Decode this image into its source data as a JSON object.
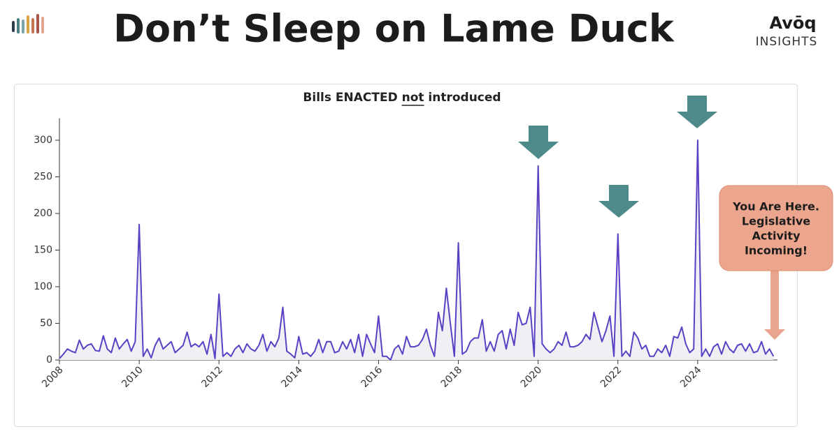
{
  "header": {
    "title": "Don’t Sleep on Lame Duck",
    "brand": "Avōq",
    "brand_sub": "INSIGHTS"
  },
  "chart_data": {
    "type": "area",
    "title": "Bills ENACTED not introduced",
    "color": "#5b3fc4",
    "fill": "#eef0f4",
    "x": [
      2008,
      2008.1,
      2008.2,
      2008.3,
      2008.4,
      2008.5,
      2008.6,
      2008.7,
      2008.8,
      2008.9,
      2009,
      2009.1,
      2009.2,
      2009.3,
      2009.4,
      2009.5,
      2009.6,
      2009.7,
      2009.8,
      2009.9,
      2010,
      2010.1,
      2010.2,
      2010.3,
      2010.4,
      2010.5,
      2010.6,
      2010.7,
      2010.8,
      2010.9,
      2011,
      2011.1,
      2011.2,
      2011.3,
      2011.4,
      2011.5,
      2011.6,
      2011.7,
      2011.8,
      2011.9,
      2012,
      2012.1,
      2012.2,
      2012.3,
      2012.4,
      2012.5,
      2012.6,
      2012.7,
      2012.8,
      2012.9,
      2013,
      2013.1,
      2013.2,
      2013.3,
      2013.4,
      2013.5,
      2013.6,
      2013.7,
      2013.8,
      2013.9,
      2014,
      2014.1,
      2014.2,
      2014.3,
      2014.4,
      2014.5,
      2014.6,
      2014.7,
      2014.8,
      2014.9,
      2015,
      2015.1,
      2015.2,
      2015.3,
      2015.4,
      2015.5,
      2015.6,
      2015.7,
      2015.8,
      2015.9,
      2016,
      2016.1,
      2016.2,
      2016.3,
      2016.4,
      2016.5,
      2016.6,
      2016.7,
      2016.8,
      2016.9,
      2017,
      2017.1,
      2017.2,
      2017.3,
      2017.4,
      2017.5,
      2017.6,
      2017.7,
      2017.8,
      2017.9,
      2018,
      2018.1,
      2018.2,
      2018.3,
      2018.4,
      2018.5,
      2018.6,
      2018.7,
      2018.8,
      2018.9,
      2019,
      2019.1,
      2019.2,
      2019.3,
      2019.4,
      2019.5,
      2019.6,
      2019.7,
      2019.8,
      2019.9,
      2020,
      2020.1,
      2020.2,
      2020.3,
      2020.4,
      2020.5,
      2020.6,
      2020.7,
      2020.8,
      2020.9,
      2021,
      2021.1,
      2021.2,
      2021.3,
      2021.4,
      2021.5,
      2021.6,
      2021.7,
      2021.8,
      2021.9,
      2022,
      2022.1,
      2022.2,
      2022.3,
      2022.4,
      2022.5,
      2022.6,
      2022.7,
      2022.8,
      2022.9,
      2023,
      2023.1,
      2023.2,
      2023.3,
      2023.4,
      2023.5,
      2023.6,
      2023.7,
      2023.8,
      2023.9,
      2024,
      2024.1,
      2024.2,
      2024.3,
      2024.4,
      2024.5,
      2024.6,
      2024.7,
      2024.8,
      2024.9,
      2025,
      2025.1,
      2025.2,
      2025.3,
      2025.4,
      2025.5,
      2025.6,
      2025.7,
      2025.8,
      2025.9
    ],
    "values": [
      2,
      8,
      15,
      12,
      10,
      27,
      15,
      20,
      22,
      13,
      12,
      33,
      15,
      10,
      30,
      15,
      22,
      28,
      12,
      25,
      185,
      5,
      15,
      3,
      20,
      30,
      15,
      20,
      25,
      10,
      15,
      20,
      38,
      18,
      22,
      18,
      25,
      8,
      35,
      2,
      90,
      5,
      10,
      5,
      15,
      20,
      10,
      22,
      15,
      12,
      20,
      35,
      12,
      25,
      18,
      30,
      72,
      12,
      8,
      3,
      32,
      8,
      10,
      5,
      12,
      28,
      10,
      25,
      25,
      10,
      12,
      25,
      15,
      28,
      10,
      35,
      5,
      35,
      22,
      10,
      60,
      5,
      5,
      0,
      15,
      20,
      8,
      32,
      18,
      18,
      20,
      28,
      42,
      20,
      5,
      65,
      40,
      98,
      50,
      5,
      160,
      8,
      12,
      25,
      30,
      30,
      55,
      12,
      25,
      12,
      35,
      40,
      15,
      42,
      20,
      65,
      48,
      50,
      72,
      5,
      265,
      22,
      15,
      10,
      15,
      25,
      20,
      38,
      18,
      18,
      20,
      25,
      35,
      28,
      65,
      45,
      25,
      40,
      60,
      5,
      172,
      5,
      12,
      5,
      38,
      30,
      15,
      20,
      5,
      5,
      15,
      10,
      20,
      5,
      32,
      30,
      45,
      22,
      10,
      15,
      300,
      5,
      15,
      5,
      18,
      22,
      8,
      25,
      15,
      10,
      20,
      22,
      12,
      22,
      10,
      12,
      25,
      8,
      15,
      5
    ],
    "xlim": [
      2008,
      2026
    ],
    "xticks": [
      2008,
      2010,
      2012,
      2014,
      2016,
      2018,
      2020,
      2022,
      2024
    ],
    "ylim": [
      0,
      330
    ],
    "yticks": [
      0,
      50,
      100,
      150,
      200,
      250,
      300
    ],
    "annotation": [
      "You Are Here.",
      "Legislative",
      "Activity",
      "Incoming!"
    ]
  }
}
